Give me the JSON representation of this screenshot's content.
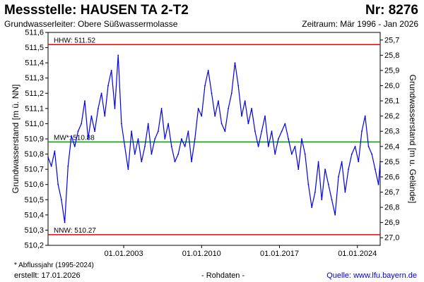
{
  "header": {
    "title": "Messstelle: HAUSEN TA 2-T2",
    "number": "Nr: 8276",
    "aquifer": "Grundwasserleiter:   Obere Süßwassermolasse",
    "period": "Zeitraum: Mär 1996 - Jan 2026"
  },
  "footer": {
    "note": "* Abflussjahr (1995-2024)",
    "created": "erstellt:  17.01.2026",
    "raw": "- Rohdaten -",
    "source": "Quelle:  www.lfu.bayern.de"
  },
  "colors": {
    "series": "#0000ee",
    "extreme": "#ee0000",
    "mean": "#009900",
    "source": "#0000cc"
  },
  "chart_data": {
    "type": "line",
    "title": "",
    "xlabel": "",
    "ylabel": "Grundwasserstand [m ü. NN]",
    "ylabel_right": "Grundwasserstand [m u. Gelände]",
    "ylim": [
      510.2,
      511.6
    ],
    "ylim_right": [
      27.05,
      25.65
    ],
    "xlim": [
      1996.2,
      2026.05
    ],
    "grid": false,
    "y_ticks": [
      "511,6",
      "511,5",
      "511,4",
      "511,3",
      "511,2",
      "511,1",
      "511,0",
      "510,9",
      "510,8",
      "510,7",
      "510,6",
      "510,5",
      "510,4",
      "510,3",
      "510,2"
    ],
    "y_ticks_right": [
      "25,7",
      "25,8",
      "25,9",
      "26,0",
      "26,1",
      "26,2",
      "26,3",
      "26,4",
      "26,5",
      "26,6",
      "26,7",
      "26,8",
      "26,9",
      "27,0"
    ],
    "x_ticks": [
      {
        "label": "01.01.2003",
        "x": 2003.0
      },
      {
        "label": "01.01.2010",
        "x": 2010.0
      },
      {
        "label": "01.01.2017",
        "x": 2017.0
      },
      {
        "label": "01.01.2024",
        "x": 2024.0
      }
    ],
    "reference_lines": [
      {
        "name": "HHW",
        "label": "HHW: 511.52",
        "y": 511.52,
        "color": "#ee0000"
      },
      {
        "name": "MW",
        "label": "MW*: 510.88",
        "y": 510.88,
        "color": "#009900"
      },
      {
        "name": "NNW",
        "label": "NNW: 510.27",
        "y": 510.27,
        "color": "#ee0000"
      }
    ],
    "series": [
      {
        "x": [
          1996.2,
          1996.5,
          1996.8,
          1997.1,
          1997.4,
          1997.7,
          1998.0,
          1998.3,
          1998.6,
          1998.9,
          1999.2,
          1999.5,
          1999.8,
          2000.1,
          2000.4,
          2000.7,
          2001.0,
          2001.3,
          2001.6,
          2001.9,
          2002.2,
          2002.5,
          2002.8,
          2003.1,
          2003.4,
          2003.7,
          2004.0,
          2004.3,
          2004.6,
          2004.9,
          2005.2,
          2005.5,
          2005.8,
          2006.1,
          2006.4,
          2006.7,
          2007.0,
          2007.3,
          2007.6,
          2007.9,
          2008.2,
          2008.5,
          2008.8,
          2009.1,
          2009.4,
          2009.7,
          2010.0,
          2010.3,
          2010.6,
          2010.9,
          2011.2,
          2011.5,
          2011.8,
          2012.1,
          2012.4,
          2012.7,
          2013.0,
          2013.3,
          2013.6,
          2013.9,
          2014.2,
          2014.5,
          2014.8,
          2015.1,
          2015.4,
          2015.7,
          2016.0,
          2016.3,
          2016.6,
          2016.9,
          2017.2,
          2017.5,
          2017.8,
          2018.1,
          2018.4,
          2018.7,
          2019.0,
          2019.3,
          2019.6,
          2019.9,
          2020.2,
          2020.5,
          2020.8,
          2021.1,
          2021.4,
          2021.7,
          2022.0,
          2022.3,
          2022.6,
          2022.9,
          2023.2,
          2023.5,
          2023.8,
          2024.1,
          2024.4,
          2024.7,
          2025.0,
          2025.3,
          2025.6,
          2025.9,
          2026.05
        ],
        "y": [
          510.78,
          510.72,
          510.82,
          510.6,
          510.5,
          510.35,
          510.72,
          510.92,
          510.85,
          510.95,
          511.0,
          511.15,
          510.9,
          511.05,
          510.95,
          511.1,
          511.2,
          511.05,
          511.25,
          511.35,
          511.1,
          511.45,
          511.0,
          510.85,
          510.7,
          510.95,
          510.8,
          510.9,
          510.75,
          510.85,
          511.0,
          510.8,
          510.9,
          510.95,
          511.1,
          510.9,
          511.0,
          510.85,
          510.75,
          510.8,
          510.9,
          510.85,
          510.95,
          510.75,
          510.9,
          511.1,
          511.05,
          511.25,
          511.35,
          511.2,
          511.05,
          511.15,
          511.0,
          510.95,
          511.1,
          511.2,
          511.4,
          511.25,
          511.05,
          511.15,
          511.0,
          511.1,
          510.95,
          510.85,
          510.95,
          511.05,
          510.85,
          510.95,
          510.8,
          510.9,
          510.95,
          511.0,
          510.9,
          510.8,
          510.85,
          510.7,
          510.9,
          510.8,
          510.6,
          510.45,
          510.55,
          510.75,
          510.5,
          510.7,
          510.6,
          510.5,
          510.4,
          510.65,
          510.75,
          510.55,
          510.7,
          510.8,
          510.85,
          510.75,
          510.95,
          511.05,
          510.85,
          510.8,
          510.7,
          510.6,
          510.75
        ]
      }
    ]
  }
}
